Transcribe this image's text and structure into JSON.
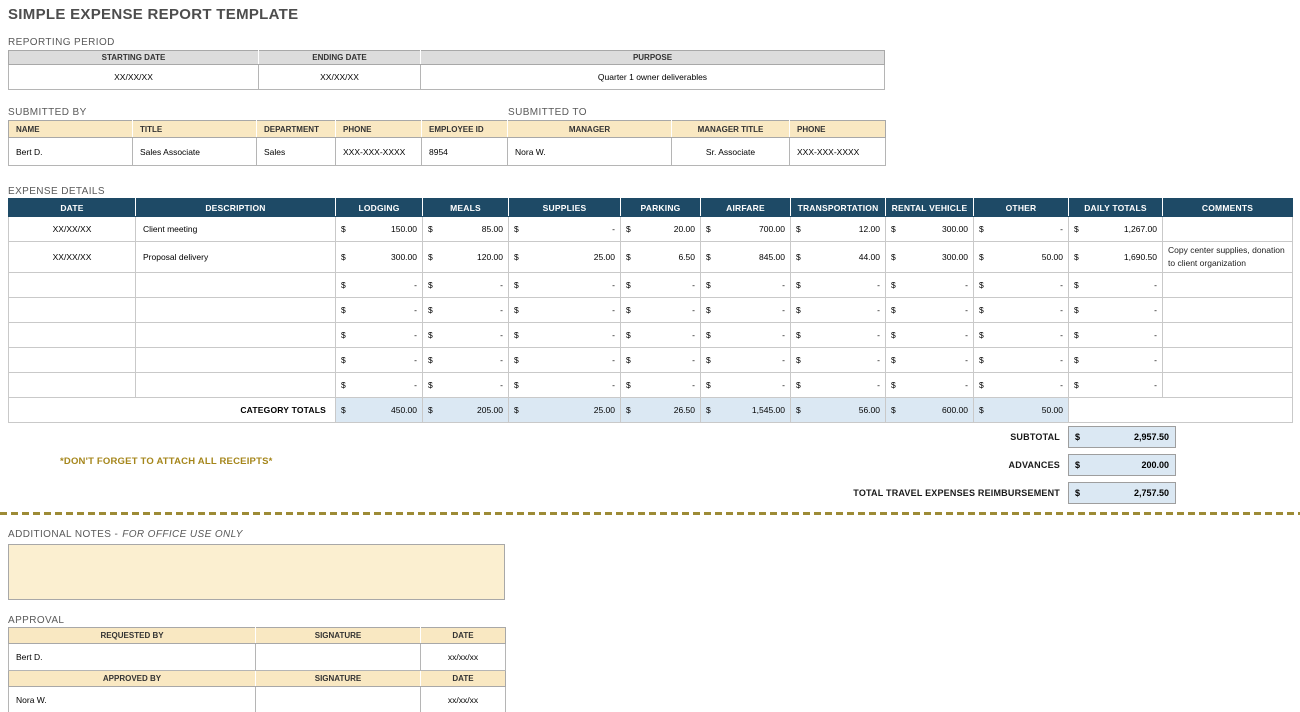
{
  "page_title": "SIMPLE EXPENSE REPORT TEMPLATE",
  "reporting_period": {
    "section_label": "REPORTING PERIOD",
    "headers": [
      "STARTING DATE",
      "ENDING DATE",
      "PURPOSE"
    ],
    "starting_date": "XX/XX/XX",
    "ending_date": "XX/XX/XX",
    "purpose": "Quarter 1 owner deliverables"
  },
  "submitted": {
    "by_label": "SUBMITTED BY",
    "to_label": "SUBMITTED TO",
    "headers": [
      "NAME",
      "TITLE",
      "DEPARTMENT",
      "PHONE",
      "EMPLOYEE ID",
      "MANAGER",
      "MANAGER TITLE",
      "PHONE"
    ],
    "values": [
      "Bert D.",
      "Sales Associate",
      "Sales",
      "XXX-XXX-XXXX",
      "8954",
      "Nora W.",
      "Sr. Associate",
      "XXX-XXX-XXXX"
    ]
  },
  "expense_details": {
    "section_label": "EXPENSE DETAILS",
    "currency_symbol": "$",
    "columns": [
      "DATE",
      "DESCRIPTION",
      "LODGING",
      "MEALS",
      "SUPPLIES",
      "PARKING",
      "AIRFARE",
      "TRANSPORTATION",
      "RENTAL VEHICLE",
      "OTHER",
      "DAILY TOTALS",
      "COMMENTS"
    ],
    "rows": [
      {
        "date": "XX/XX/XX",
        "description": "Client meeting",
        "amounts": [
          "150.00",
          "85.00",
          "-",
          "20.00",
          "700.00",
          "12.00",
          "300.00",
          "-",
          "1,267.00"
        ],
        "comments": ""
      },
      {
        "date": "XX/XX/XX",
        "description": "Proposal delivery",
        "amounts": [
          "300.00",
          "120.00",
          "25.00",
          "6.50",
          "845.00",
          "44.00",
          "300.00",
          "50.00",
          "1,690.50"
        ],
        "comments": "Copy center supplies, donation to client organization"
      },
      {
        "date": "",
        "description": "",
        "amounts": [
          "-",
          "-",
          "-",
          "-",
          "-",
          "-",
          "-",
          "-",
          "-"
        ],
        "comments": ""
      },
      {
        "date": "",
        "description": "",
        "amounts": [
          "-",
          "-",
          "-",
          "-",
          "-",
          "-",
          "-",
          "-",
          "-"
        ],
        "comments": ""
      },
      {
        "date": "",
        "description": "",
        "amounts": [
          "-",
          "-",
          "-",
          "-",
          "-",
          "-",
          "-",
          "-",
          "-"
        ],
        "comments": ""
      },
      {
        "date": "",
        "description": "",
        "amounts": [
          "-",
          "-",
          "-",
          "-",
          "-",
          "-",
          "-",
          "-",
          "-"
        ],
        "comments": ""
      },
      {
        "date": "",
        "description": "",
        "amounts": [
          "-",
          "-",
          "-",
          "-",
          "-",
          "-",
          "-",
          "-",
          "-"
        ],
        "comments": ""
      }
    ],
    "category_totals": {
      "label": "CATEGORY TOTALS",
      "amounts": [
        "450.00",
        "205.00",
        "25.00",
        "26.50",
        "1,545.00",
        "56.00",
        "600.00",
        "50.00"
      ]
    },
    "summary_rows": [
      {
        "label": "SUBTOTAL",
        "amount": "2,957.50"
      },
      {
        "label": "ADVANCES",
        "amount": "200.00"
      },
      {
        "label": "TOTAL TRAVEL EXPENSES REIMBURSEMENT",
        "amount": "2,757.50"
      }
    ]
  },
  "receipts_note": "*DON'T FORGET TO ATTACH ALL RECEIPTS*",
  "additional_notes": {
    "label_prefix": "ADDITIONAL NOTES -",
    "label_italic": "FOR OFFICE USE ONLY",
    "value": ""
  },
  "approval": {
    "section_label": "APPROVAL",
    "requested": {
      "headers": [
        "REQUESTED BY",
        "SIGNATURE",
        "DATE"
      ],
      "name": "Bert D.",
      "signature": "",
      "date": "xx/xx/xx"
    },
    "approved": {
      "headers": [
        "APPROVED BY",
        "SIGNATURE",
        "DATE"
      ],
      "name": "Nora W.",
      "signature": "",
      "date": "xx/xx/xx"
    }
  },
  "colors": {
    "header_navy": "#1E4A66",
    "header_tan": "#F9E8C2",
    "notes_bg": "#FBEFD0",
    "totals_blue": "#DBE8F3",
    "accent_gold": "#A5861B",
    "header_gray": "#DCDCDC"
  }
}
